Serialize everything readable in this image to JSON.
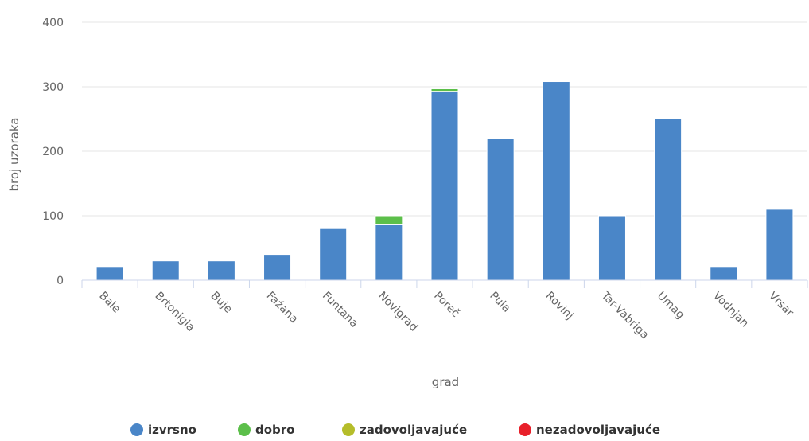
{
  "chart_data": {
    "type": "bar",
    "stacked": true,
    "xlabel": "grad",
    "ylabel": "broj uzoraka",
    "ylim": [
      0,
      400
    ],
    "yticks": [
      0,
      100,
      200,
      300,
      400
    ],
    "grid": true,
    "legend_position": "bottom",
    "categories": [
      "Bale",
      "Brtonigla",
      "Buje",
      "Fažana",
      "Funtana",
      "Novigrad",
      "Poreč",
      "Pula",
      "Rovinj",
      "Tar-Vabriga",
      "Umag",
      "Vodnjan",
      "Vrsar"
    ],
    "series": [
      {
        "name": "izvrsno",
        "color": "#4a86c8",
        "values": [
          20,
          30,
          30,
          40,
          80,
          86,
          293,
          220,
          308,
          100,
          250,
          20,
          110
        ]
      },
      {
        "name": "dobro",
        "color": "#5cbf4a",
        "values": [
          0,
          0,
          0,
          0,
          0,
          14,
          4,
          0,
          0,
          0,
          0,
          0,
          0
        ]
      },
      {
        "name": "zadovoljavajuće",
        "color": "#b5bd2a",
        "values": [
          0,
          0,
          0,
          0,
          0,
          0,
          2,
          0,
          0,
          0,
          0,
          0,
          0
        ]
      },
      {
        "name": "nezadovoljavajuće",
        "color": "#e8202a",
        "values": [
          0,
          0,
          0,
          0,
          0,
          0,
          0,
          0,
          0,
          0,
          0,
          0,
          0
        ]
      }
    ]
  }
}
